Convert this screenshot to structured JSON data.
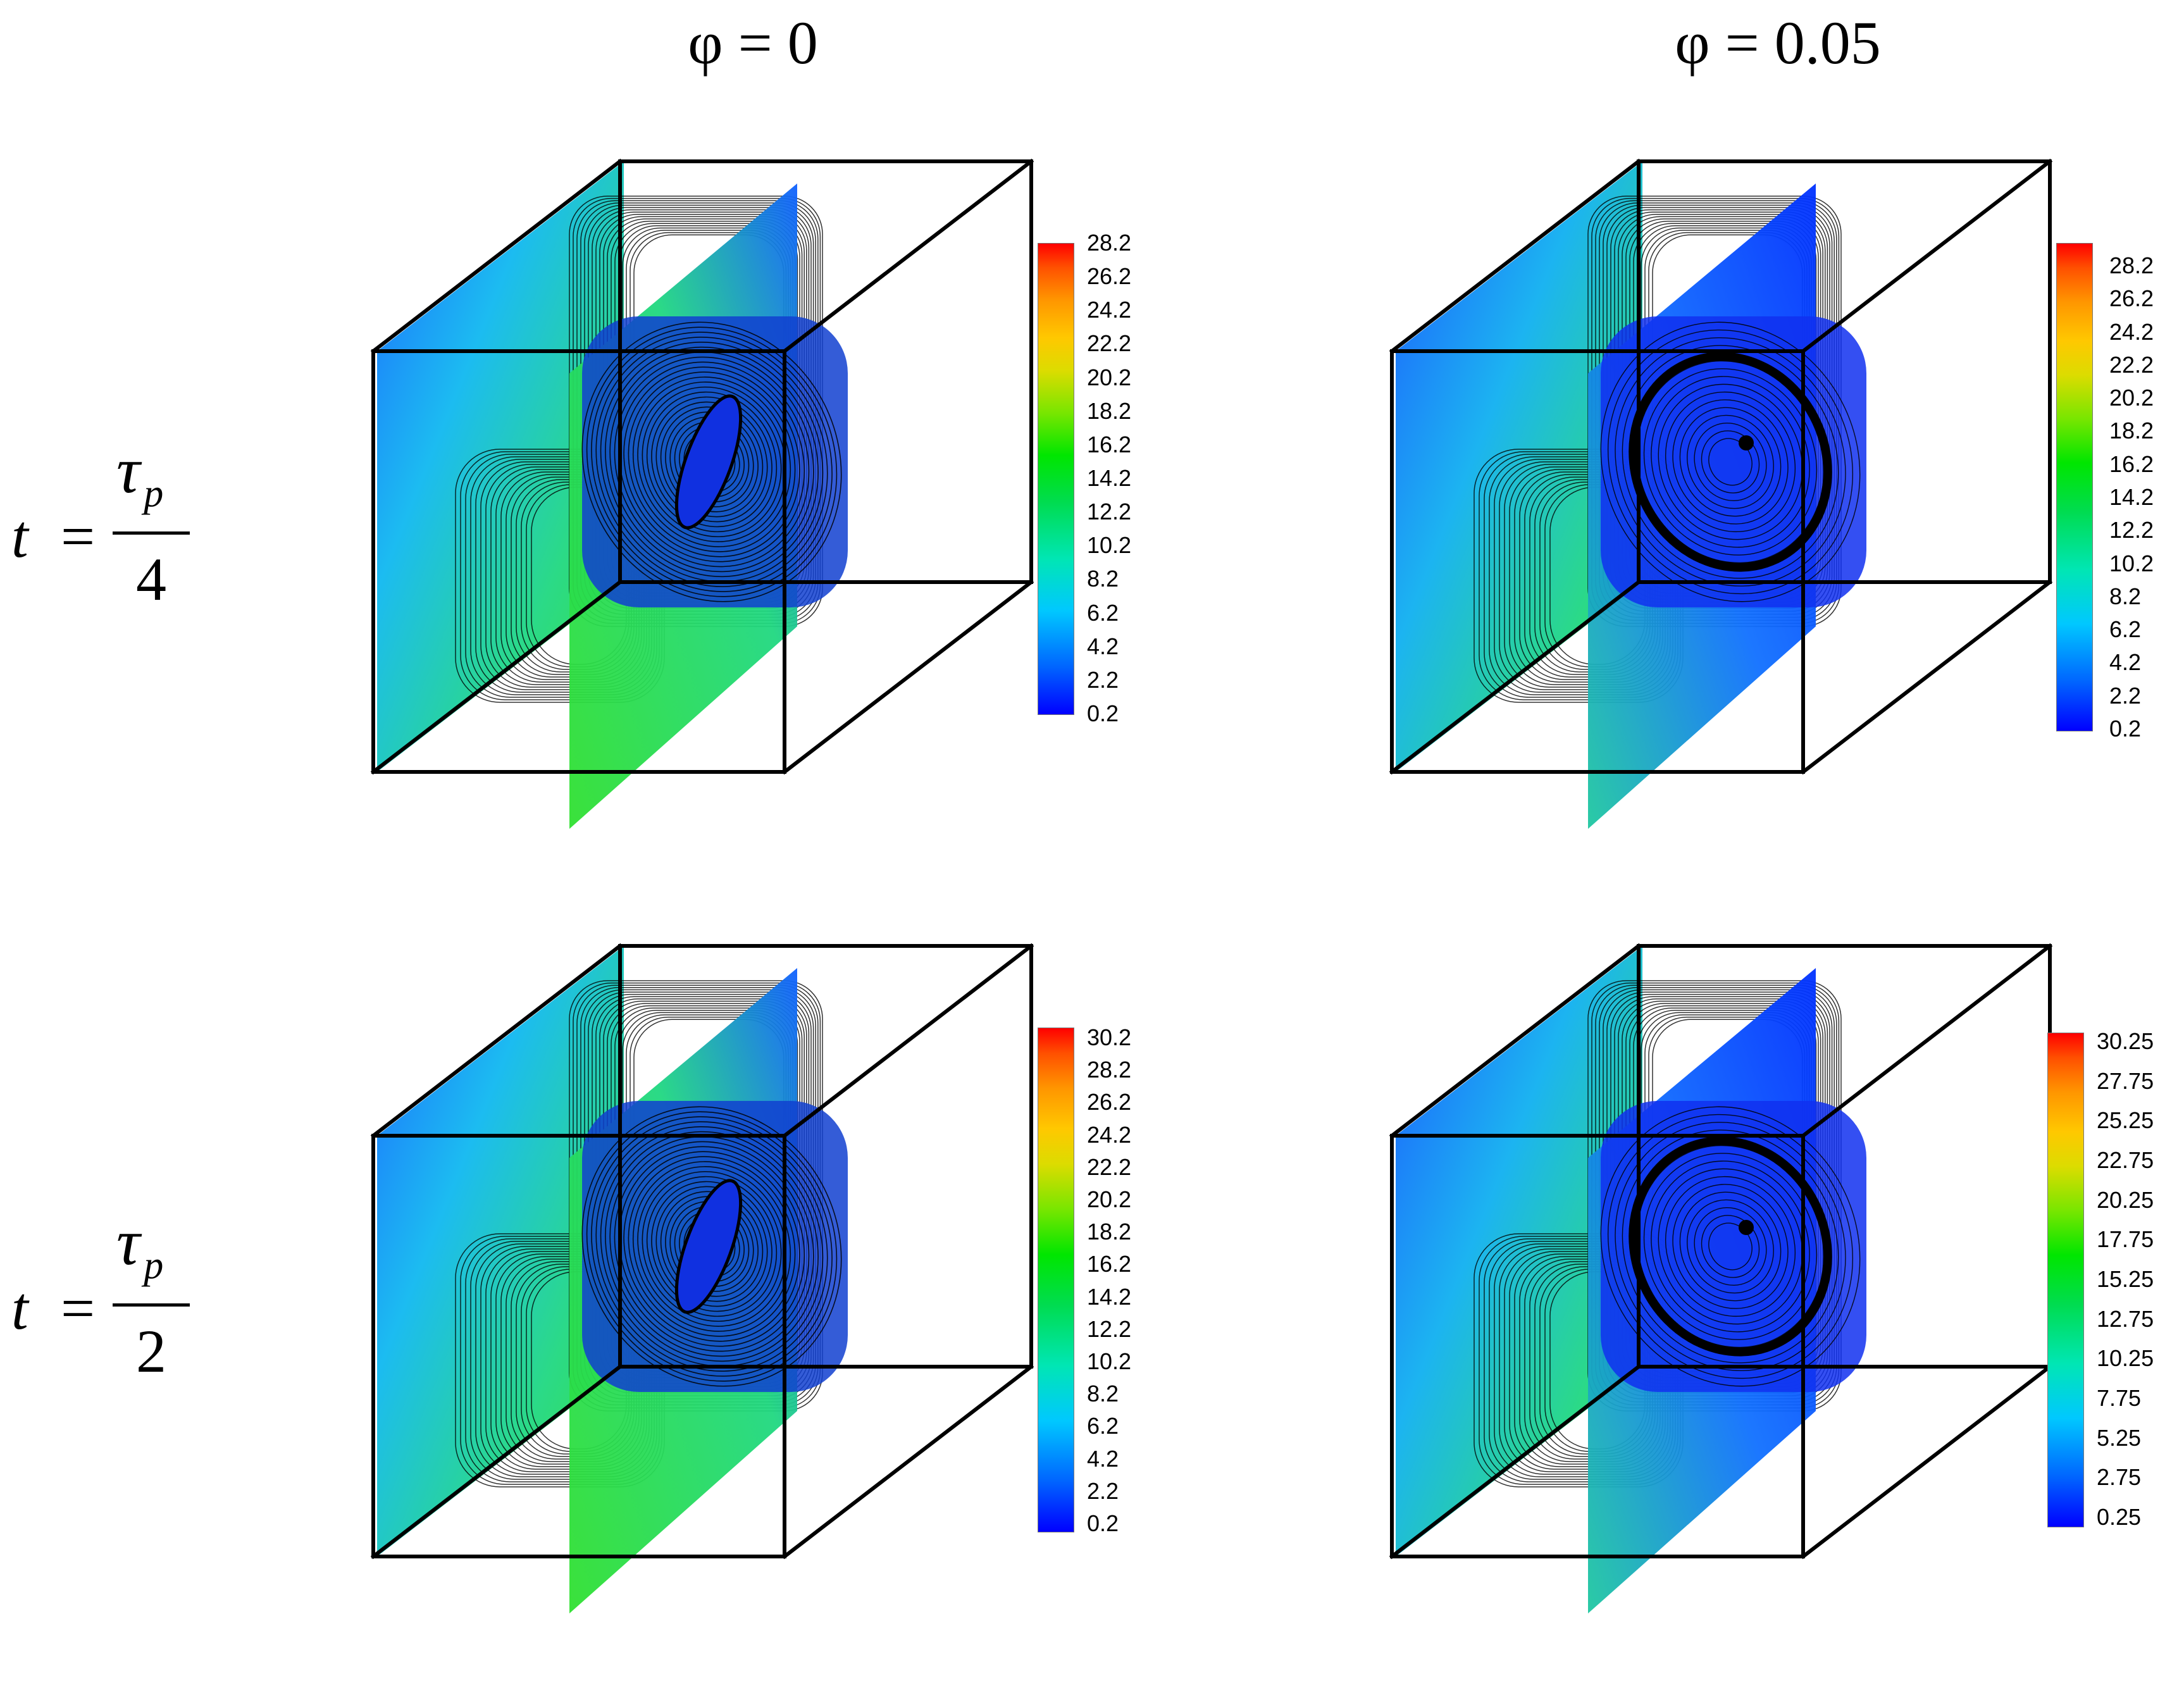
{
  "headers": {
    "col1": "φ = 0",
    "col2": "φ = 0.05"
  },
  "rows": [
    {
      "t": "t",
      "eq": "=",
      "numerator": "τ",
      "sub": "p",
      "denominator": "4"
    },
    {
      "t": "t",
      "eq": "=",
      "numerator": "τ",
      "sub": "p",
      "denominator": "2"
    }
  ],
  "panels": [
    {
      "id": "row1-phi0",
      "ticks": [
        "28.2",
        "26.2",
        "24.2",
        "22.2",
        "20.2",
        "18.2",
        "16.2",
        "14.2",
        "12.2",
        "10.2",
        "8.2",
        "6.2",
        "4.2",
        "2.2",
        "0.2"
      ]
    },
    {
      "id": "row1-phi005",
      "ticks": [
        "28.2",
        "26.2",
        "24.2",
        "22.2",
        "20.2",
        "18.2",
        "16.2",
        "14.2",
        "12.2",
        "10.2",
        "8.2",
        "6.2",
        "4.2",
        "2.2",
        "0.2"
      ]
    },
    {
      "id": "row2-phi0",
      "ticks": [
        "30.2",
        "28.2",
        "26.2",
        "24.2",
        "22.2",
        "20.2",
        "18.2",
        "16.2",
        "14.2",
        "12.2",
        "10.2",
        "8.2",
        "6.2",
        "4.2",
        "2.2",
        "0.2"
      ]
    },
    {
      "id": "row2-phi005",
      "ticks": [
        "30.25",
        "27.75",
        "25.25",
        "22.75",
        "20.25",
        "17.75",
        "15.25",
        "12.75",
        "10.25",
        "7.75",
        "5.25",
        "2.75",
        "0.25"
      ]
    }
  ]
}
